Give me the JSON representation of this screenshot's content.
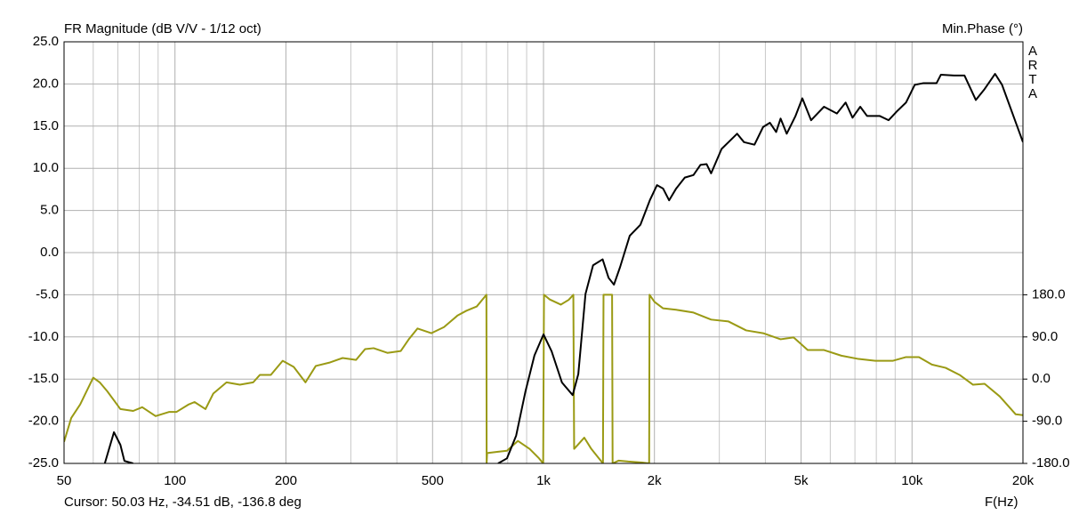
{
  "chart_data": {
    "type": "line",
    "title": "FR Magnitude (dB V/V - 1/12 oct)",
    "y2_title": "Min.Phase (°)",
    "watermark": "ARTA",
    "x_label": "F(Hz)",
    "cursor_text": "Cursor: 50.03 Hz, -34.51 dB, -136.8 deg",
    "xscale": "log",
    "xlim": [
      50,
      20000
    ],
    "xticks": [
      50,
      100,
      200,
      500,
      {
        "value": 1000,
        "label": "1k"
      },
      {
        "value": 2000,
        "label": "2k"
      },
      {
        "value": 5000,
        "label": "5k"
      },
      {
        "value": 10000,
        "label": "10k"
      },
      {
        "value": 20000,
        "label": "20k"
      }
    ],
    "xgrid": [
      60,
      70,
      80,
      90,
      300,
      400,
      600,
      700,
      800,
      900,
      3000,
      4000,
      6000,
      7000,
      8000,
      9000
    ],
    "ylim": [
      -25,
      25
    ],
    "yticks": [
      {
        "value": 25,
        "label": "25.0"
      },
      {
        "value": 20,
        "label": "20.0"
      },
      {
        "value": 15,
        "label": "15.0"
      },
      {
        "value": 10,
        "label": "10.0"
      },
      {
        "value": 5,
        "label": "5.0"
      },
      {
        "value": 0,
        "label": "0.0"
      },
      {
        "value": -5,
        "label": "-5.0"
      },
      {
        "value": -10,
        "label": "-10.0"
      },
      {
        "value": -15,
        "label": "-15.0"
      },
      {
        "value": -20,
        "label": "-20.0"
      },
      {
        "value": -25,
        "label": "-25.0"
      }
    ],
    "y2lim": [
      -180,
      720
    ],
    "y2ticks": [
      {
        "value": 180,
        "label": "180.0"
      },
      {
        "value": 90,
        "label": "90.0"
      },
      {
        "value": 0,
        "label": "0.0"
      },
      {
        "value": -90,
        "label": "-90.0"
      },
      {
        "value": -180,
        "label": "-180.0"
      }
    ],
    "grid": true,
    "series": [
      {
        "color": "#000000",
        "x": [
          64.5,
          68.3,
          71.1,
          72.9,
          77,
          null,
          753,
          796,
          843,
          893,
          945,
          1000,
          1052,
          1122,
          1200,
          1243,
          1300,
          1363,
          1447,
          1502,
          1553,
          1614,
          1714,
          1832,
          1943,
          2032,
          2111,
          2192,
          2291,
          2418,
          2552,
          2666,
          2770,
          2850,
          3043,
          3177,
          3353,
          3500,
          3736,
          3944,
          4116,
          4279,
          4399,
          4571,
          4828,
          5039,
          5322,
          5770,
          6254,
          6605,
          6896,
          7236,
          7552,
          8178,
          8636,
          9121,
          9632,
          10173,
          10744,
          11658,
          11979,
          13000,
          13880,
          14900,
          15740,
          16800,
          17550,
          20000
        ],
        "values": [
          -25,
          -21.3,
          -22.8,
          -24.7,
          -25,
          null,
          -25,
          -24.4,
          -21.7,
          -16.5,
          -12.2,
          -9.7,
          -11.7,
          -15.4,
          -16.9,
          -14.4,
          -4.9,
          -1.5,
          -0.8,
          -3.0,
          -3.8,
          -1.7,
          2.0,
          3.3,
          6.2,
          8.0,
          7.6,
          6.2,
          7.6,
          8.9,
          9.2,
          10.4,
          10.5,
          9.4,
          12.3,
          13.1,
          14.1,
          13.1,
          12.8,
          14.9,
          15.4,
          14.3,
          15.9,
          14.1,
          16.2,
          18.3,
          15.7,
          17.3,
          16.5,
          17.8,
          16.0,
          17.3,
          16.2,
          16.2,
          15.7,
          16.8,
          17.8,
          19.9,
          20.1,
          20.1,
          21.1,
          21.0,
          21.0,
          18.1,
          19.4,
          21.2,
          19.9,
          13.1
        ]
      },
      {
        "color": "#9a9a14",
        "axis": "y2",
        "x": [
          50,
          52.3,
          55.3,
          60,
          62.5,
          65.5,
          71.1,
          77,
          81.5,
          88.6,
          96.5,
          101,
          109,
          113,
          121,
          127,
          138,
          150,
          163,
          170,
          182,
          196,
          210,
          226,
          241,
          262,
          285,
          310,
          328,
          346,
          377,
          410,
          431,
          455,
          496,
          537,
          585,
          618,
          659,
          700,
          701,
          703,
          753,
          796,
          852,
          917,
          972,
          998,
          1003,
          1040,
          1114,
          1170,
          1205,
          1211,
          1290,
          1348,
          1450,
          1455,
          1535,
          1540,
          1600,
          1700,
          1850,
          1935,
          1940,
          2000,
          2111,
          2291,
          2552,
          2850,
          3177,
          3547,
          3944,
          4399,
          4772,
          5211,
          5770,
          6431,
          7154,
          7948,
          8861,
          9632,
          10440,
          11320,
          12340,
          13460,
          14640,
          15740,
          17300,
          19100,
          20000
        ],
        "values": [
          -134,
          -83,
          -54,
          3,
          -7,
          -26,
          -64,
          -68,
          -60,
          -79,
          -70,
          -70,
          -54,
          -49,
          -64,
          -31,
          -7,
          -12,
          -7,
          9,
          9,
          39,
          26,
          -7,
          28,
          35,
          45,
          41,
          64,
          66,
          56,
          60,
          85,
          108,
          98,
          111,
          136,
          146,
          155,
          180,
          -180,
          -158,
          -155,
          -153,
          -132,
          -149,
          -169,
          -180,
          180,
          170,
          159,
          169,
          180,
          -149,
          -125,
          -149,
          -180,
          180,
          180,
          -180,
          -174,
          -176,
          -178,
          -180,
          180,
          165,
          151,
          148,
          142,
          127,
          123,
          104,
          98,
          85,
          89,
          62,
          62,
          50,
          43,
          39,
          39,
          47,
          47,
          31,
          24,
          9,
          -12,
          -10,
          -37,
          -75,
          -77
        ]
      }
    ]
  }
}
